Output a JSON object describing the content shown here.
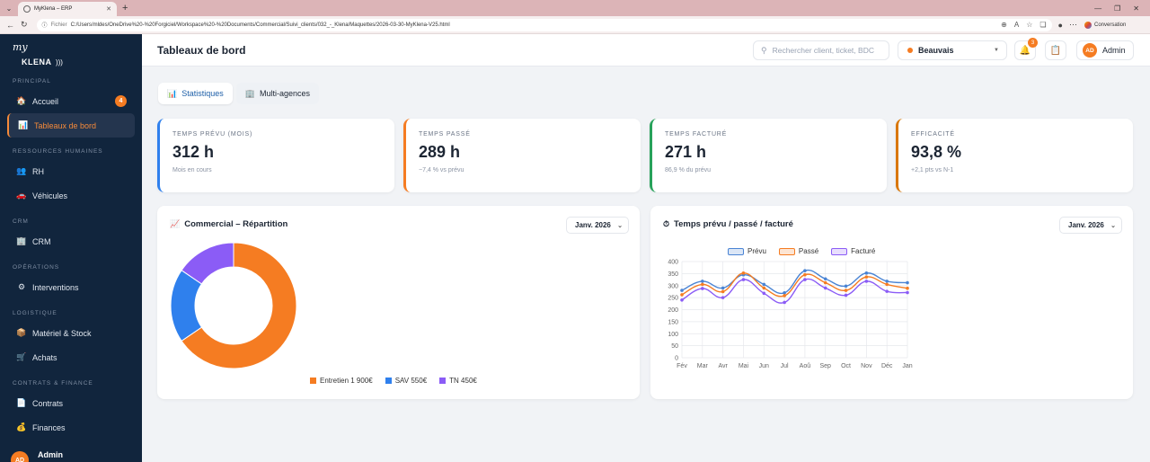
{
  "browser": {
    "tab_title": "MyKlena – ERP",
    "url_label": "Fichier",
    "url": "C:/Users/mldes/OneDrive%20-%20Forgiciel/Workspace%20-%20Documents/Commercial/Suivi_clients/032_-_Klena/Maquettes/2026-03-30-MyKlena-V25.html",
    "conversation": "Conversation"
  },
  "sidebar": {
    "logo_my": "my",
    "logo_klena": "KLENA",
    "sections": {
      "principal": "PRINCIPAL",
      "rh": "RESSOURCES HUMAINES",
      "crm": "CRM",
      "operations": "OPÉRATIONS",
      "logistique": "LOGISTIQUE",
      "contrats": "CONTRATS & FINANCE"
    },
    "items": [
      {
        "label": "Accueil",
        "badge": "4"
      },
      {
        "label": "Tableaux de bord"
      },
      {
        "label": "RH"
      },
      {
        "label": "Véhicules"
      },
      {
        "label": "CRM"
      },
      {
        "label": "Interventions"
      },
      {
        "label": "Matériel & Stock"
      },
      {
        "label": "Achats"
      },
      {
        "label": "Contrats"
      },
      {
        "label": "Finances"
      }
    ],
    "user": {
      "initials": "AD",
      "name": "Admin"
    }
  },
  "header": {
    "title": "Tableaux de bord",
    "search_placeholder": "Rechercher client, ticket, BDC",
    "agency": "Beauvais",
    "notif_count": "3",
    "user_initials": "AD",
    "user_name": "Admin"
  },
  "tabs": [
    {
      "label": "Statistiques"
    },
    {
      "label": "Multi-agences"
    }
  ],
  "kpis": [
    {
      "label": "TEMPS PRÉVU (MOIS)",
      "value": "312 h",
      "sub": "Mois en cours",
      "color": "#2f80ed"
    },
    {
      "label": "TEMPS PASSÉ",
      "value": "289 h",
      "sub": "−7,4 % vs prévu",
      "color": "#f57c22"
    },
    {
      "label": "TEMPS FACTURÉ",
      "value": "271 h",
      "sub": "86,9 % du prévu",
      "color": "#27a25a"
    },
    {
      "label": "EFFICACITÉ",
      "value": "93,8 %",
      "sub": "+2,1 pts vs N-1",
      "color": "#d97706"
    }
  ],
  "donut_panel": {
    "title": "Commercial – Répartition",
    "month": "Janv. 2026",
    "legend": [
      "Entretien 1 900€",
      "SAV 550€",
      "TN 450€"
    ]
  },
  "line_panel": {
    "title": "Temps prévu / passé / facturé",
    "month": "Janv. 2026"
  },
  "chart_data": [
    {
      "type": "pie",
      "categories": [
        "Entretien",
        "SAV",
        "TN"
      ],
      "values": [
        1900,
        550,
        450
      ],
      "colors": [
        "#f57c22",
        "#2f80ed",
        "#8b5cf6"
      ],
      "legend_position": "bottom"
    },
    {
      "type": "line",
      "categories": [
        "Fév",
        "Mar",
        "Avr",
        "Mai",
        "Jun",
        "Jul",
        "Aoû",
        "Sep",
        "Oct",
        "Nov",
        "Déc",
        "Jan"
      ],
      "series": [
        {
          "name": "Prévu",
          "color": "#4a84d4",
          "values": [
            280,
            318,
            290,
            345,
            305,
            270,
            362,
            328,
            298,
            352,
            318,
            312
          ]
        },
        {
          "name": "Passé",
          "color": "#f57c22",
          "values": [
            262,
            305,
            275,
            352,
            290,
            258,
            345,
            312,
            280,
            336,
            305,
            289
          ]
        },
        {
          "name": "Facturé",
          "color": "#8b5cf6",
          "values": [
            240,
            288,
            250,
            325,
            268,
            230,
            325,
            290,
            260,
            318,
            276,
            271
          ]
        }
      ],
      "ylim": [
        0,
        400
      ],
      "ytick_step": 50,
      "grid": true,
      "legend_position": "top"
    }
  ]
}
